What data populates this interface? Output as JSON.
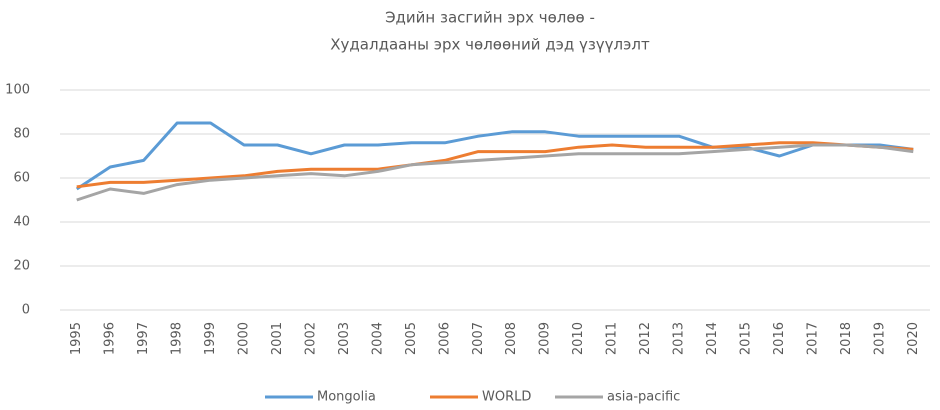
{
  "chart_data": {
    "type": "line",
    "title": [
      "Эдийн засгийн эрх чөлөө -",
      "Худалдааны эрх чөлөөний дэд үзүүлэлт"
    ],
    "categories": [
      "1995",
      "1996",
      "1997",
      "1998",
      "1999",
      "2000",
      "2001",
      "2002",
      "2003",
      "2004",
      "2005",
      "2006",
      "2007",
      "2008",
      "2009",
      "2010",
      "2011",
      "2012",
      "2013",
      "2014",
      "2015",
      "2016",
      "2017",
      "2018",
      "2019",
      "2020"
    ],
    "series": [
      {
        "name": "Mongolia",
        "color": "#5b9bd5",
        "values": [
          55,
          65,
          68,
          85,
          85,
          75,
          75,
          71,
          75,
          75,
          76,
          76,
          79,
          81,
          81,
          79,
          79,
          79,
          79,
          74,
          74,
          70,
          75,
          75,
          75,
          73
        ]
      },
      {
        "name": "WORLD",
        "color": "#ed7d31",
        "values": [
          56,
          58,
          58,
          59,
          60,
          61,
          63,
          64,
          64,
          64,
          66,
          68,
          72,
          72,
          72,
          74,
          75,
          74,
          74,
          74,
          75,
          76,
          76,
          75,
          74,
          73
        ]
      },
      {
        "name": "asia-pacific",
        "color": "#a5a5a5",
        "values": [
          50,
          55,
          53,
          57,
          59,
          60,
          61,
          62,
          61,
          63,
          66,
          67,
          68,
          69,
          70,
          71,
          71,
          71,
          71,
          72,
          73,
          74,
          75,
          75,
          74,
          72
        ]
      }
    ],
    "ylim": [
      0,
      100
    ],
    "yticks": [
      0,
      20,
      40,
      60,
      80,
      100
    ],
    "grid": true,
    "legend": "bottom"
  }
}
